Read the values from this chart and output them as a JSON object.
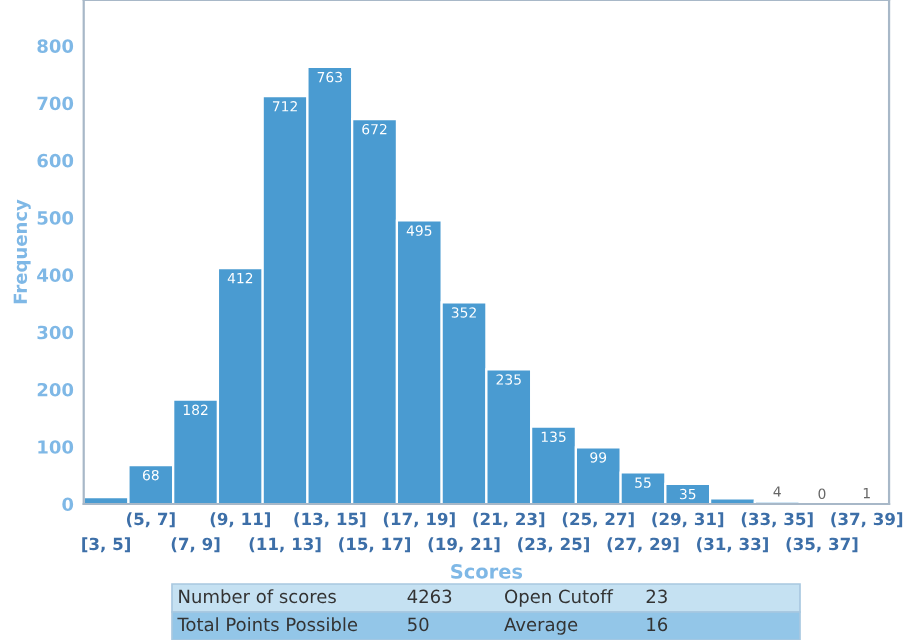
{
  "chart_data": {
    "type": "bar",
    "categories": [
      "[3, 5]",
      "(5, 7]",
      "(7, 9]",
      "(9, 11]",
      "(11, 13]",
      "(13, 15]",
      "(15, 17]",
      "(17, 19]",
      "(19, 21]",
      "(21, 23]",
      "(23, 25]",
      "(25, 27]",
      "(27, 29]",
      "(29, 31]",
      "(31, 33]",
      "(33, 35]",
      "(35, 37]",
      "(37, 39]"
    ],
    "values": [
      12,
      68,
      182,
      412,
      712,
      763,
      672,
      495,
      352,
      235,
      135,
      99,
      55,
      35,
      10,
      4,
      0,
      1
    ],
    "value_labels": [
      null,
      "68",
      "182",
      "412",
      "712",
      "763",
      "672",
      "495",
      "352",
      "235",
      "135",
      "99",
      "55",
      "35",
      null,
      "4",
      "0",
      "1"
    ],
    "color": "#4a9bd1",
    "ylim": [
      0,
      880
    ],
    "yticks": [
      0,
      100,
      200,
      300,
      400,
      500,
      600,
      700,
      800
    ],
    "xlabel": "Scores",
    "ylabel": "Frequency",
    "grid": false,
    "legend": false,
    "annotations": [
      "Number of scores",
      "4263",
      "Open Cutoff",
      "23",
      "Total Points Possible",
      "50",
      "Average",
      "16"
    ]
  }
}
